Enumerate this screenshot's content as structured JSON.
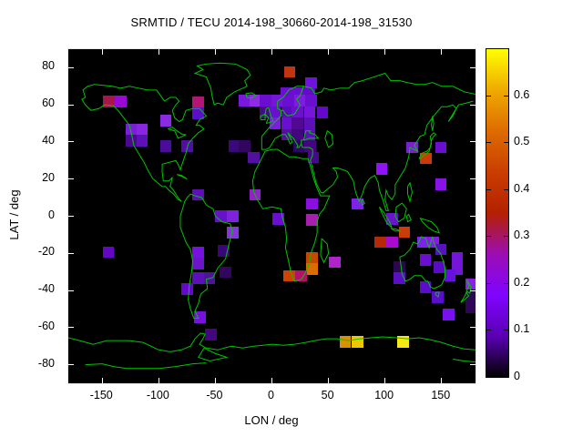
{
  "title": "SRMTID / TECU 2014-198_30660-2014-198_31530",
  "axes": {
    "xlabel": "LON / deg",
    "ylabel": "LAT / deg",
    "xticks": [
      -150,
      -100,
      -50,
      0,
      50,
      100,
      150
    ],
    "yticks": [
      -80,
      -60,
      -40,
      -20,
      0,
      20,
      40,
      60,
      80
    ],
    "xlim": [
      -180,
      180
    ],
    "ylim": [
      -90,
      90
    ]
  },
  "colorbar": {
    "ticks": [
      "0",
      "0.1",
      "0.2",
      "0.3",
      "0.4",
      "0.5",
      "0.6"
    ],
    "tick_values": [
      0,
      0.1,
      0.2,
      0.3,
      0.4,
      0.5,
      0.6
    ],
    "range": [
      0,
      0.7
    ],
    "gradient": [
      [
        0,
        "#000000"
      ],
      [
        0.125,
        "#5a00b4"
      ],
      [
        0.25,
        "#8004ff"
      ],
      [
        0.375,
        "#9c0db4"
      ],
      [
        0.5,
        "#b42000"
      ],
      [
        0.625,
        "#ca3e00"
      ],
      [
        0.75,
        "#dd6c00"
      ],
      [
        0.875,
        "#efaa00"
      ],
      [
        1,
        "#ffff00"
      ]
    ]
  },
  "colors": {
    "background": "#ffffff",
    "plot_background": "#000000",
    "coastline": "#00c400",
    "tick_color": "#ffffff",
    "text_color": "#000000"
  },
  "chart_data": {
    "type": "heatmap",
    "title": "SRMTID / TECU 2014-198_30660-2014-198_31530",
    "xlabel": "LON / deg",
    "ylabel": "LAT / deg",
    "xlim": [
      -180,
      180
    ],
    "ylim": [
      -90,
      90
    ],
    "grid": false,
    "legend_position": "colorbar-right",
    "palette": "gnuplot pm3d black-violet-red-yellow",
    "units": "TECU",
    "cell_size_deg": {
      "lon": 10.2,
      "lat": 6.2
    },
    "cells_format": [
      "lon_left_deg",
      "lat_top_deg",
      "color",
      "value_tecu"
    ],
    "cells": [
      [
        -149.4,
        65.0,
        "#a81648",
        0.33
      ],
      [
        -139.0,
        65.0,
        "#9a08d8",
        0.24
      ],
      [
        -70.5,
        64.5,
        "#b21672",
        0.3
      ],
      [
        -99.0,
        54.7,
        "#8a2be2",
        0.2
      ],
      [
        -70.5,
        58.4,
        "#5a0fc8",
        0.17
      ],
      [
        -129.5,
        49.8,
        "#7a1fd8",
        0.19
      ],
      [
        -119.8,
        49.8,
        "#8a25e0",
        0.2
      ],
      [
        -129.5,
        43.7,
        "#4a0a90",
        0.13
      ],
      [
        -119.8,
        43.7,
        "#5c10b8",
        0.16
      ],
      [
        -99.0,
        40.8,
        "#4a0d99",
        0.13
      ],
      [
        -79.9,
        40.8,
        "#520da5",
        0.14
      ],
      [
        -38.6,
        40.8,
        "#3a0878",
        0.11
      ],
      [
        -29.3,
        40.8,
        "#30065e",
        0.09
      ],
      [
        -21.2,
        34.7,
        "#52109f",
        0.14
      ],
      [
        7.4,
        69.4,
        "#6a0fd0",
        0.18
      ],
      [
        17.6,
        69.4,
        "#6a0fd0",
        0.18
      ],
      [
        28.0,
        69.4,
        "#600cc8",
        0.17
      ],
      [
        -29.3,
        65.3,
        "#7a18dd",
        0.19
      ],
      [
        -19.9,
        65.3,
        "#9029e8",
        0.22
      ],
      [
        -10.5,
        65.3,
        "#6a0fd0",
        0.18
      ],
      [
        -0.8,
        65.3,
        "#7416d8",
        0.19
      ],
      [
        9.2,
        65.3,
        "#6a0fd0",
        0.18
      ],
      [
        19.4,
        65.3,
        "#7d1be0",
        0.19
      ],
      [
        29.5,
        65.3,
        "#6a0fd0",
        0.18
      ],
      [
        -10.5,
        59.1,
        "#440a88",
        0.12
      ],
      [
        -2.4,
        59.1,
        "#6a0fd0",
        0.18
      ],
      [
        8.2,
        59.1,
        "#5a0cb8",
        0.16
      ],
      [
        17.6,
        59.1,
        "#6a11cc",
        0.18
      ],
      [
        28.4,
        59.1,
        "#7716d8",
        0.19
      ],
      [
        39.6,
        59.1,
        "#6608cc",
        0.17
      ],
      [
        -2.4,
        53.1,
        "#7d1be0",
        0.19
      ],
      [
        8.2,
        53.1,
        "#6a0fd0",
        0.18
      ],
      [
        17.6,
        53.1,
        "#52088f",
        0.13
      ],
      [
        28.4,
        53.1,
        "#5c10b8",
        0.16
      ],
      [
        8.2,
        47.0,
        "#52109f",
        0.14
      ],
      [
        17.6,
        47.0,
        "#44067f",
        0.11
      ],
      [
        28.4,
        47.0,
        "#5c10b8",
        0.16
      ],
      [
        18.9,
        40.8,
        "#2e0560",
        0.08
      ],
      [
        28.9,
        40.8,
        "#44067f",
        0.11
      ],
      [
        31.5,
        34.7,
        "#440a88",
        0.12
      ],
      [
        10.6,
        80.8,
        "#c23510",
        0.44
      ],
      [
        29.6,
        74.9,
        "#7012dd",
        0.19
      ],
      [
        -19.9,
        14.6,
        "#9222c8",
        0.23
      ],
      [
        -70.5,
        14.6,
        "#5c10b5",
        0.16
      ],
      [
        30.2,
        9.8,
        "#8a10e0",
        0.21
      ],
      [
        70.5,
        9.8,
        "#7d22e8",
        0.2
      ],
      [
        0.6,
        1.7,
        "#6a0fd0",
        0.18
      ],
      [
        -50.3,
        3.2,
        "#6611cc",
        0.17
      ],
      [
        -39.6,
        3.2,
        "#7d22dd",
        0.2
      ],
      [
        30.2,
        1.1,
        "#a81fb0",
        0.27
      ],
      [
        101.4,
        1.7,
        "#6a15cc",
        0.18
      ],
      [
        -39.6,
        -5.7,
        "#8833dd",
        0.21
      ],
      [
        91.0,
        -10.9,
        "#b52808",
        0.4
      ],
      [
        101.3,
        -10.9,
        "#a70ccc",
        0.25
      ],
      [
        112.0,
        -5.5,
        "#cc3c08",
        0.45
      ],
      [
        30.2,
        -19.4,
        "#c44a00",
        0.46
      ],
      [
        30.2,
        -25.5,
        "#d96e00",
        0.52
      ],
      [
        10.2,
        -29.1,
        "#cc4400",
        0.46
      ],
      [
        20.8,
        -29.1,
        "#b5106a",
        0.31
      ],
      [
        50.3,
        -21.6,
        "#b022cc",
        0.26
      ],
      [
        -149.7,
        -16.3,
        "#6208c4",
        0.17
      ],
      [
        -70.5,
        -16.3,
        "#7711dd",
        0.19
      ],
      [
        -70.5,
        -22.3,
        "#6a15c8",
        0.18
      ],
      [
        -47.7,
        -15.4,
        "#3a0677",
        0.1
      ],
      [
        -46.3,
        -27.0,
        "#30065e",
        0.09
      ],
      [
        -70.5,
        -30.3,
        "#5c10b8",
        0.16
      ],
      [
        -60.2,
        -30.3,
        "#4f129a",
        0.14
      ],
      [
        -79.9,
        -36.1,
        "#6608cc",
        0.17
      ],
      [
        -68.6,
        -51.3,
        "#7711dd",
        0.19
      ],
      [
        -59.2,
        -60.6,
        "#44067f",
        0.11
      ],
      [
        128.2,
        -10.9,
        "#7d22e8",
        0.2
      ],
      [
        137.5,
        -10.9,
        "#8a18ee",
        0.21
      ],
      [
        144.3,
        -14.8,
        "#5512be",
        0.15
      ],
      [
        130.5,
        -20.3,
        "#6a0fd0",
        0.18
      ],
      [
        107.8,
        -24.4,
        "#2a0750",
        0.08
      ],
      [
        107.8,
        -30.2,
        "#5a10c0",
        0.16
      ],
      [
        142.6,
        -24.4,
        "#5a0cc4",
        0.16
      ],
      [
        158.7,
        -19.5,
        "#7316d8",
        0.19
      ],
      [
        158.7,
        -25.2,
        "#7316d8",
        0.19
      ],
      [
        152.3,
        -28.7,
        "#6611dd",
        0.17
      ],
      [
        130.5,
        -35.1,
        "#5a0ecc",
        0.16
      ],
      [
        141.6,
        -40.7,
        "#5a0ec8",
        0.16
      ],
      [
        151.0,
        -49.9,
        "#7711ee",
        0.19
      ],
      [
        170.8,
        -33.5,
        "#8a1fe8",
        0.21
      ],
      [
        170.8,
        -40.0,
        "#2c0752",
        0.08
      ],
      [
        171.5,
        -45.9,
        "#2e0557",
        0.08
      ],
      [
        118.8,
        40.2,
        "#7722cc",
        0.19
      ],
      [
        130.9,
        34.3,
        "#cc3a08",
        0.45
      ],
      [
        144.3,
        40.2,
        "#6a0fd0",
        0.18
      ],
      [
        144.3,
        20.4,
        "#8812e8",
        0.21
      ],
      [
        92.0,
        28.6,
        "#9012f5",
        0.22
      ],
      [
        59.7,
        -64.6,
        "#d89200",
        0.55
      ],
      [
        70.4,
        -64.6,
        "#ecc800",
        0.6
      ],
      [
        110.8,
        -64.6,
        "#f5ea15",
        0.67
      ]
    ]
  }
}
